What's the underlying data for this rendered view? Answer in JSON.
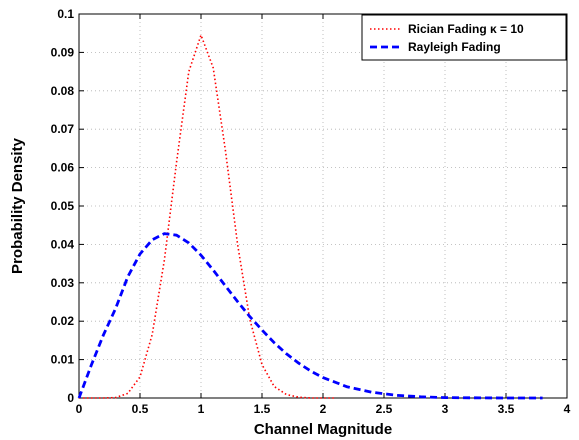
{
  "chart_data": {
    "type": "line",
    "xlabel": "Channel Magnitude",
    "ylabel": "Probability Density",
    "xlim": [
      0,
      4
    ],
    "ylim": [
      0,
      0.1
    ],
    "xticks": [
      0,
      0.5,
      1,
      1.5,
      2,
      2.5,
      3,
      3.5,
      4
    ],
    "xtick_labels": [
      "0",
      "0.5",
      "1",
      "1.5",
      "2",
      "2.5",
      "3",
      "3.5",
      "4"
    ],
    "yticks": [
      0,
      0.01,
      0.02,
      0.03,
      0.04,
      0.05,
      0.06,
      0.07,
      0.08,
      0.09,
      0.1
    ],
    "ytick_labels": [
      "0",
      "0.01",
      "0.02",
      "0.03",
      "0.04",
      "0.05",
      "0.06",
      "0.07",
      "0.08",
      "0.09",
      "0.1"
    ],
    "grid": true,
    "legend_position": "top-right",
    "series": [
      {
        "name": "Rician Fading  κ = 10",
        "color": "#ff0000",
        "line_style": "dotted",
        "x": [
          0,
          0.2,
          0.3,
          0.4,
          0.5,
          0.6,
          0.7,
          0.8,
          0.9,
          1.0,
          1.1,
          1.2,
          1.3,
          1.4,
          1.5,
          1.6,
          1.7,
          1.8,
          1.9,
          2.0,
          2.1
        ],
        "y": [
          0,
          0,
          0.0001,
          0.0012,
          0.0055,
          0.0165,
          0.036,
          0.0615,
          0.085,
          0.0945,
          0.086,
          0.0645,
          0.04,
          0.0205,
          0.0087,
          0.003,
          0.0009,
          0.0002,
          0,
          0,
          0
        ]
      },
      {
        "name": "Rayleigh Fading",
        "color": "#0000ff",
        "line_style": "dashed",
        "x": [
          0,
          0.1,
          0.2,
          0.3,
          0.4,
          0.5,
          0.6,
          0.7,
          0.8,
          0.9,
          1.0,
          1.1,
          1.2,
          1.3,
          1.4,
          1.5,
          1.6,
          1.7,
          1.8,
          1.9,
          2.0,
          2.2,
          2.4,
          2.6,
          2.8,
          3.0,
          3.2,
          3.5,
          3.8
        ],
        "y": [
          0,
          0.0085,
          0.0164,
          0.0233,
          0.0316,
          0.0375,
          0.0412,
          0.0428,
          0.0424,
          0.0404,
          0.0372,
          0.0333,
          0.0292,
          0.0251,
          0.0212,
          0.0177,
          0.0144,
          0.0115,
          0.0091,
          0.007,
          0.0053,
          0.0029,
          0.0015,
          0.0007,
          0.0003,
          0.0001,
          5e-05,
          0,
          0
        ]
      }
    ]
  }
}
